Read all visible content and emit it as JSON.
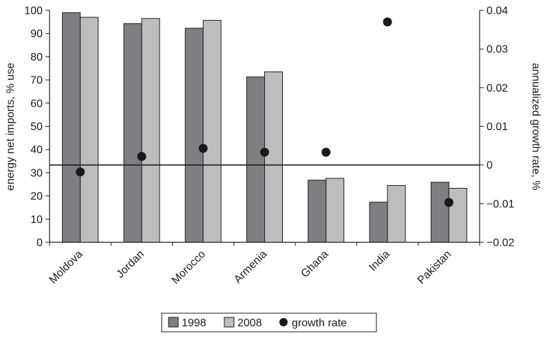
{
  "chart_data": {
    "type": "bar",
    "categories": [
      "Moldova",
      "Jordan",
      "Morocco",
      "Armenia",
      "Ghana",
      "India",
      "Pakistan"
    ],
    "series": [
      {
        "name": "1998",
        "axis": "left",
        "values": [
          99,
          94.3,
          92.3,
          71.3,
          26.8,
          17.3,
          25.9
        ],
        "color": "#7f7f83"
      },
      {
        "name": "2008",
        "axis": "left",
        "values": [
          97,
          96.5,
          95.7,
          73.5,
          27.6,
          24.5,
          23.3
        ],
        "color": "#bdbdc0"
      },
      {
        "name": "growth rate",
        "type": "scatter",
        "axis": "right",
        "values": [
          -0.0018,
          0.0022,
          0.0043,
          0.0033,
          0.0033,
          0.037,
          -0.0097
        ],
        "color": "#1a1a1a"
      }
    ],
    "y_left": {
      "label": "energy net imports, % use",
      "range": [
        0,
        100
      ],
      "ticks": [
        "0",
        "10",
        "20",
        "30",
        "40",
        "50",
        "60",
        "70",
        "80",
        "90",
        "100"
      ]
    },
    "y_right": {
      "label": "annualized growth rate, %",
      "range": [
        -0.02,
        0.04
      ],
      "ticks": [
        "-0.02",
        "-0.01",
        "0",
        "0.01",
        "0.02",
        "0.03",
        "0.04"
      ]
    },
    "zero_line": "right-axis 0",
    "grid": false,
    "legend_position": "bottom-center"
  }
}
